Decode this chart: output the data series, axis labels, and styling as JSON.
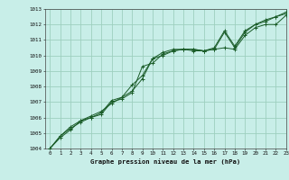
{
  "xlabel": "Graphe pression niveau de la mer (hPa)",
  "xlim": [
    -0.5,
    23
  ],
  "ylim": [
    1004,
    1013
  ],
  "yticks": [
    1004,
    1005,
    1006,
    1007,
    1008,
    1009,
    1010,
    1011,
    1012,
    1013
  ],
  "xticks": [
    0,
    1,
    2,
    3,
    4,
    5,
    6,
    7,
    8,
    9,
    10,
    11,
    12,
    13,
    14,
    15,
    16,
    17,
    18,
    19,
    20,
    21,
    22,
    23
  ],
  "bg_color": "#c8eee8",
  "grid_color": "#9ecfbf",
  "line_color": "#1a5c28",
  "line1": [
    1004.0,
    1004.8,
    1005.4,
    1005.8,
    1006.0,
    1006.3,
    1007.1,
    1007.3,
    1007.7,
    1008.5,
    1009.8,
    1010.2,
    1010.4,
    1010.4,
    1010.4,
    1010.3,
    1010.4,
    1011.5,
    1010.5,
    1011.5,
    1012.0,
    1012.2,
    1012.5,
    1012.7
  ],
  "line2": [
    1004.0,
    1004.8,
    1005.3,
    1005.7,
    1006.0,
    1006.2,
    1007.0,
    1007.2,
    1007.6,
    1009.3,
    1009.5,
    1010.1,
    1010.3,
    1010.4,
    1010.3,
    1010.3,
    1010.4,
    1010.5,
    1010.4,
    1011.3,
    1011.8,
    1012.0,
    1012.0,
    1012.6
  ],
  "line3": [
    1004.0,
    1004.7,
    1005.2,
    1005.8,
    1006.1,
    1006.4,
    1006.9,
    1007.3,
    1008.1,
    1008.7,
    1009.8,
    1010.0,
    1010.3,
    1010.4,
    1010.4,
    1010.3,
    1010.5,
    1011.6,
    1010.6,
    1011.6,
    1012.0,
    1012.3,
    1012.5,
    1012.8
  ]
}
